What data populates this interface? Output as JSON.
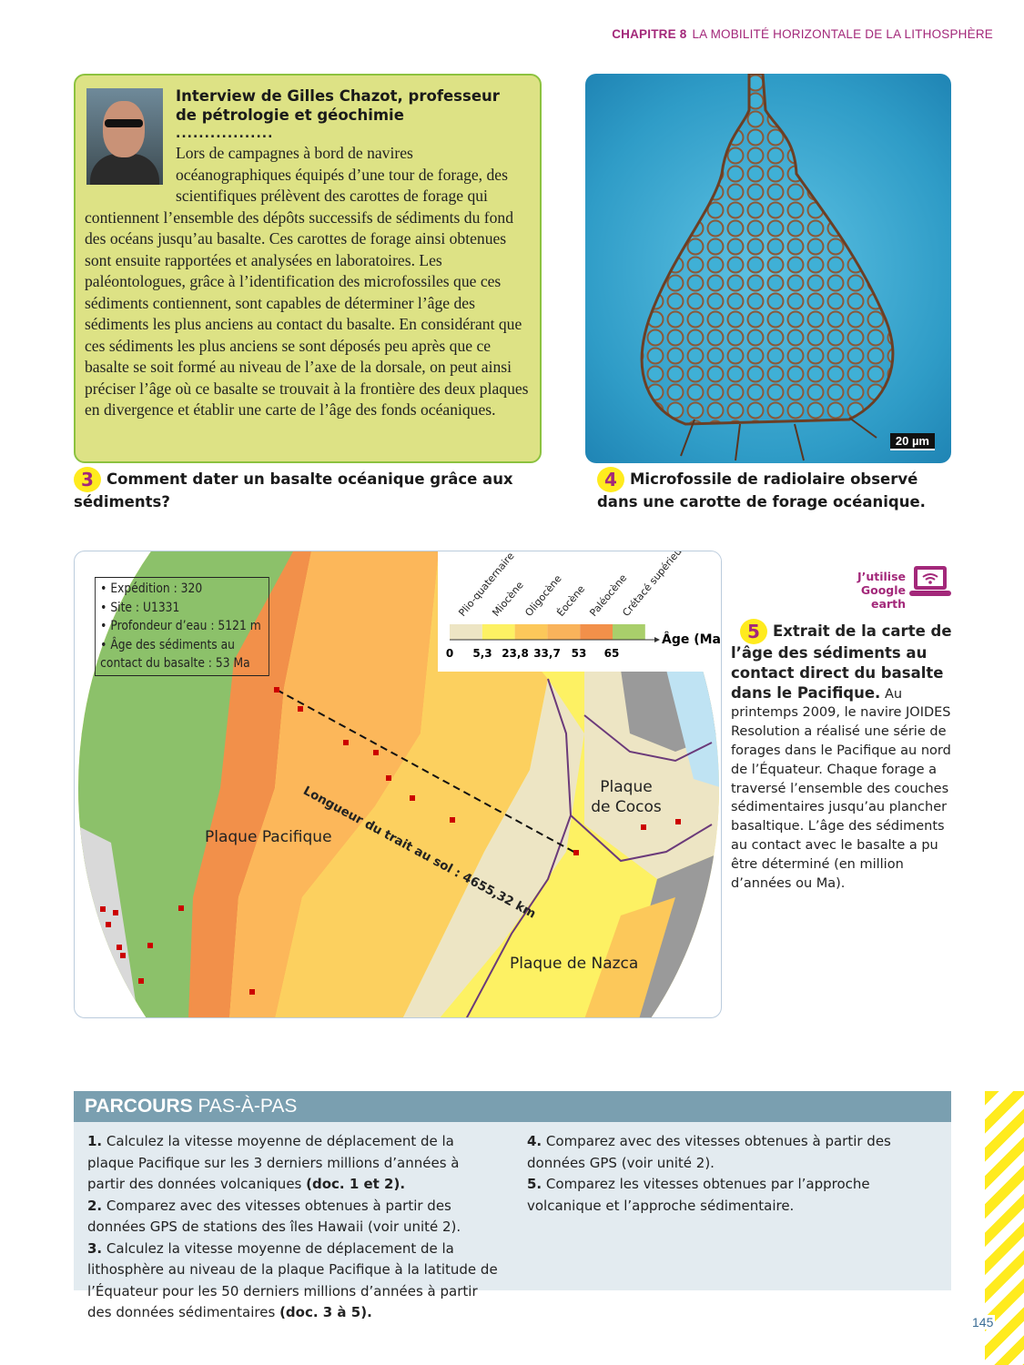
{
  "header": {
    "chapter": "CHAPITRE 8",
    "title": "LA MOBILITÉ HORIZONTALE DE LA LITHOSPHÈRE"
  },
  "doc3": {
    "title_line1": "Interview de Gilles Chazot, professeur",
    "title_line2": "de pétrologie et géochimie",
    "dots": ".................",
    "body": "Lors de campagnes à bord de navires océanographiques équipés d’une tour de forage, des scientifiques prélèvent des carottes de forage qui contiennent l’ensemble des dépôts successifs de sédiments du fond des océans jusqu’au basalte. Ces carottes de forage ainsi obtenues sont ensuite rapportées et analysées en laboratoires. Les paléontologues, grâce à l’identification des microfossiles que ces sédiments contiennent, sont capables de déterminer l’âge des sédiments les plus anciens au contact du basalte. En considérant que ces sédiments les plus anciens se sont déposés peu après que ce basalte se soit formé au niveau de l’axe de la dorsale, on peut ainsi préciser l’âge où ce basalte se trouvait à la frontière des deux plaques en divergence et établir une carte de l’âge des fonds océaniques.",
    "number": "3",
    "caption": "Comment dater un basalte océanique grâce aux sédiments?"
  },
  "doc4": {
    "scale": "20 µm",
    "number": "4",
    "caption": "Microfossile de radiolaire observé dans une carotte de forage océanique."
  },
  "map": {
    "info": [
      "Expédition : 320",
      "Site : U1331",
      "Profondeur d’eau : 5121 m",
      "Âge des sédiments au contact du basalte : 53 Ma"
    ],
    "distance_label": "Longueur du trait au sol : 4655,32 km",
    "plates": {
      "pacific": "Plaque Pacifique",
      "cocos": "Plaque de Cocos",
      "nazca": "Plaque de Nazca"
    },
    "legend": {
      "periods": [
        "Plio-quaternaire",
        "Miocène",
        "Oligocène",
        "Éocène",
        "Paléocène",
        "Crétacé supérieur"
      ],
      "ticks": [
        "0",
        "5,3",
        "23,8",
        "33,7",
        "53",
        "65"
      ],
      "axis": "Âge (Ma)",
      "colors": [
        "#ede5c4",
        "#fdf163",
        "#fcc85a",
        "#f9b35b",
        "#f2904a",
        "#a9cf6b"
      ]
    }
  },
  "google_earth": {
    "line1": "J’utilise",
    "line2": "Google earth",
    "icon": "laptop-wifi-icon"
  },
  "doc5": {
    "number": "5",
    "title": "Extrait de la carte de l’âge des sédiments au contact direct du basalte dans le Pacifique.",
    "body": "Au printemps 2009, le navire JOIDES Resolution a réalisé une série de forages dans le Pacifique au nord de l’Équateur. Chaque forage a traversé l’ensemble des couches sédimentaires jusqu’au plancher basaltique. L’âge des sédiments au contact avec le basalte a pu être déterminé (en million d’années ou Ma)."
  },
  "parcours": {
    "title_bold": "PARCOURS",
    "title_rest": "PAS-À-PAS",
    "items": [
      {
        "n": "1.",
        "text": "Calculez la vitesse moyenne de déplacement de la plaque Pacifique sur les 3 derniers millions d’années à partir des données volcaniques ",
        "ref": "(doc. 1 et 2)."
      },
      {
        "n": "2.",
        "text": "Comparez avec des vitesses obtenues à partir des données GPS de stations des îles Hawaii (voir unité 2).",
        "ref": ""
      },
      {
        "n": "3.",
        "text": "Calculez la vitesse moyenne de déplacement de la lithosphère au niveau de la plaque Pacifique à la latitude de l’Équateur pour les 50 derniers millions d’années à partir des données sédimentaires ",
        "ref": "(doc. 3 à 5)."
      },
      {
        "n": "4.",
        "text": "Comparez avec des vitesses obtenues à partir des données GPS (voir unité 2).",
        "ref": ""
      },
      {
        "n": "5.",
        "text": "Comparez les vitesses obtenues par l’approche volcanique et l’approche sédimentaire.",
        "ref": ""
      }
    ]
  },
  "page_number": "145"
}
